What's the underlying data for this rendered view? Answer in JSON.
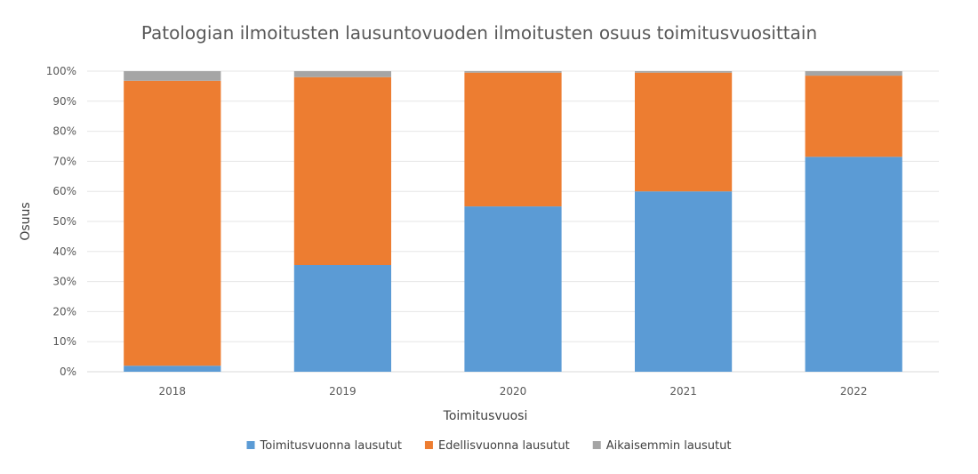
{
  "chart_data": {
    "type": "bar",
    "stacked": true,
    "title": "Patologian ilmoitusten lausuntovuoden ilmoitusten osuus toimitusvuosittain",
    "xlabel": "Toimitusvuosi",
    "ylabel": "Osuus",
    "ylim": [
      0,
      100
    ],
    "yticks": [
      "0%",
      "10%",
      "20%",
      "30%",
      "40%",
      "50%",
      "60%",
      "70%",
      "80%",
      "90%",
      "100%"
    ],
    "categories": [
      "2018",
      "2019",
      "2020",
      "2021",
      "2022"
    ],
    "series": [
      {
        "name": "Toimitusvuonna lausutut",
        "color": "#5B9BD5",
        "values": [
          2,
          35.5,
          55,
          60,
          71.5
        ]
      },
      {
        "name": "Edellisvuonna lausutut",
        "color": "#ED7D31",
        "values": [
          94.8,
          62.5,
          44.5,
          39.5,
          27
        ]
      },
      {
        "name": "Aikaisemmin lausutut",
        "color": "#A5A5A5",
        "values": [
          3.2,
          2,
          0.5,
          0.5,
          1.5
        ]
      }
    ],
    "grid": true,
    "legend": "bottom"
  }
}
